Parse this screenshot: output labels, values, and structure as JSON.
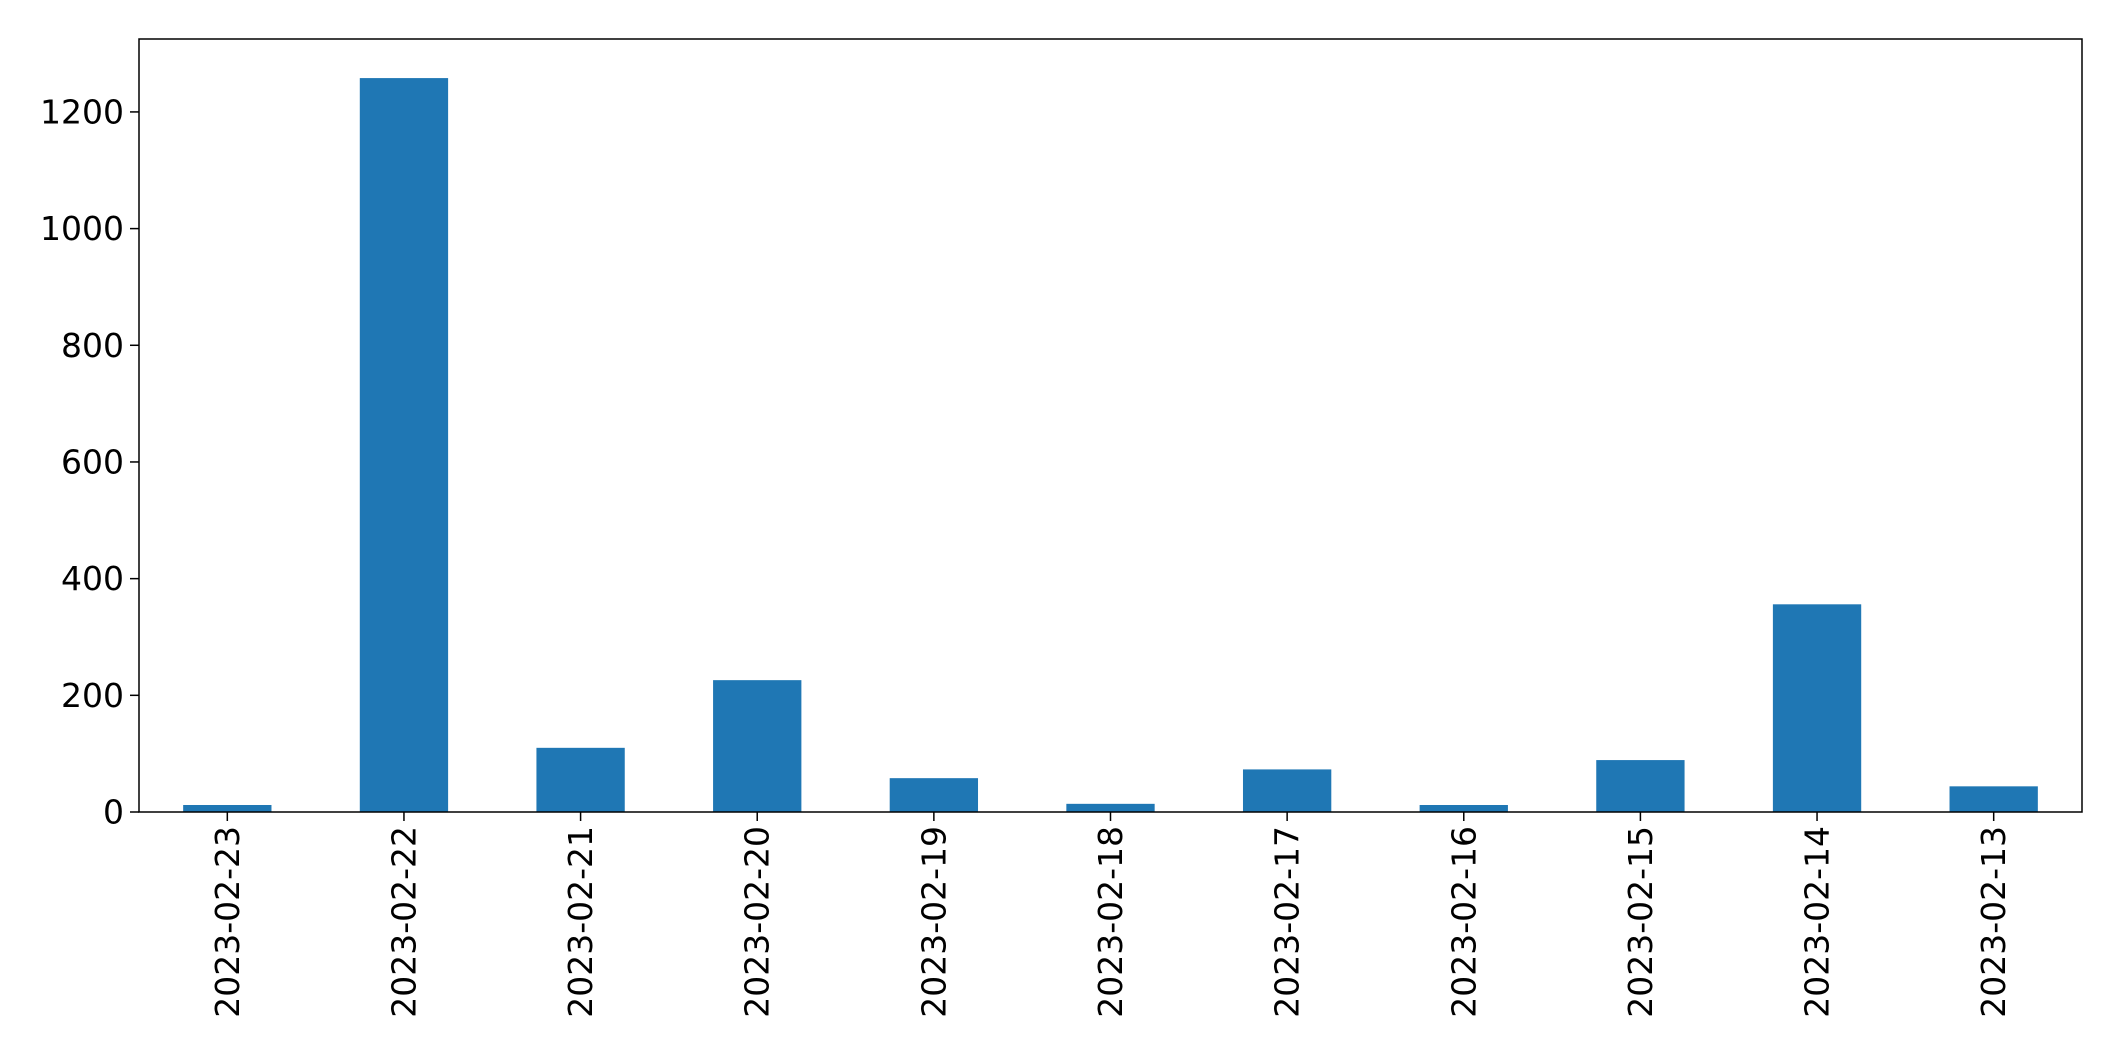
{
  "chart_data": {
    "type": "bar",
    "title": "",
    "xlabel": "",
    "ylabel": "",
    "categories": [
      "2023-02-23",
      "2023-02-22",
      "2023-02-21",
      "2023-02-20",
      "2023-02-19",
      "2023-02-18",
      "2023-02-17",
      "2023-02-16",
      "2023-02-15",
      "2023-02-14",
      "2023-02-13"
    ],
    "values": [
      12,
      1258,
      110,
      226,
      58,
      14,
      73,
      12,
      89,
      356,
      44
    ],
    "ylim": [
      0,
      1325
    ],
    "yticks": [
      0,
      200,
      400,
      600,
      800,
      1000,
      1200
    ],
    "bar_color": "#1f77b4",
    "grid": false,
    "legend": "none"
  }
}
